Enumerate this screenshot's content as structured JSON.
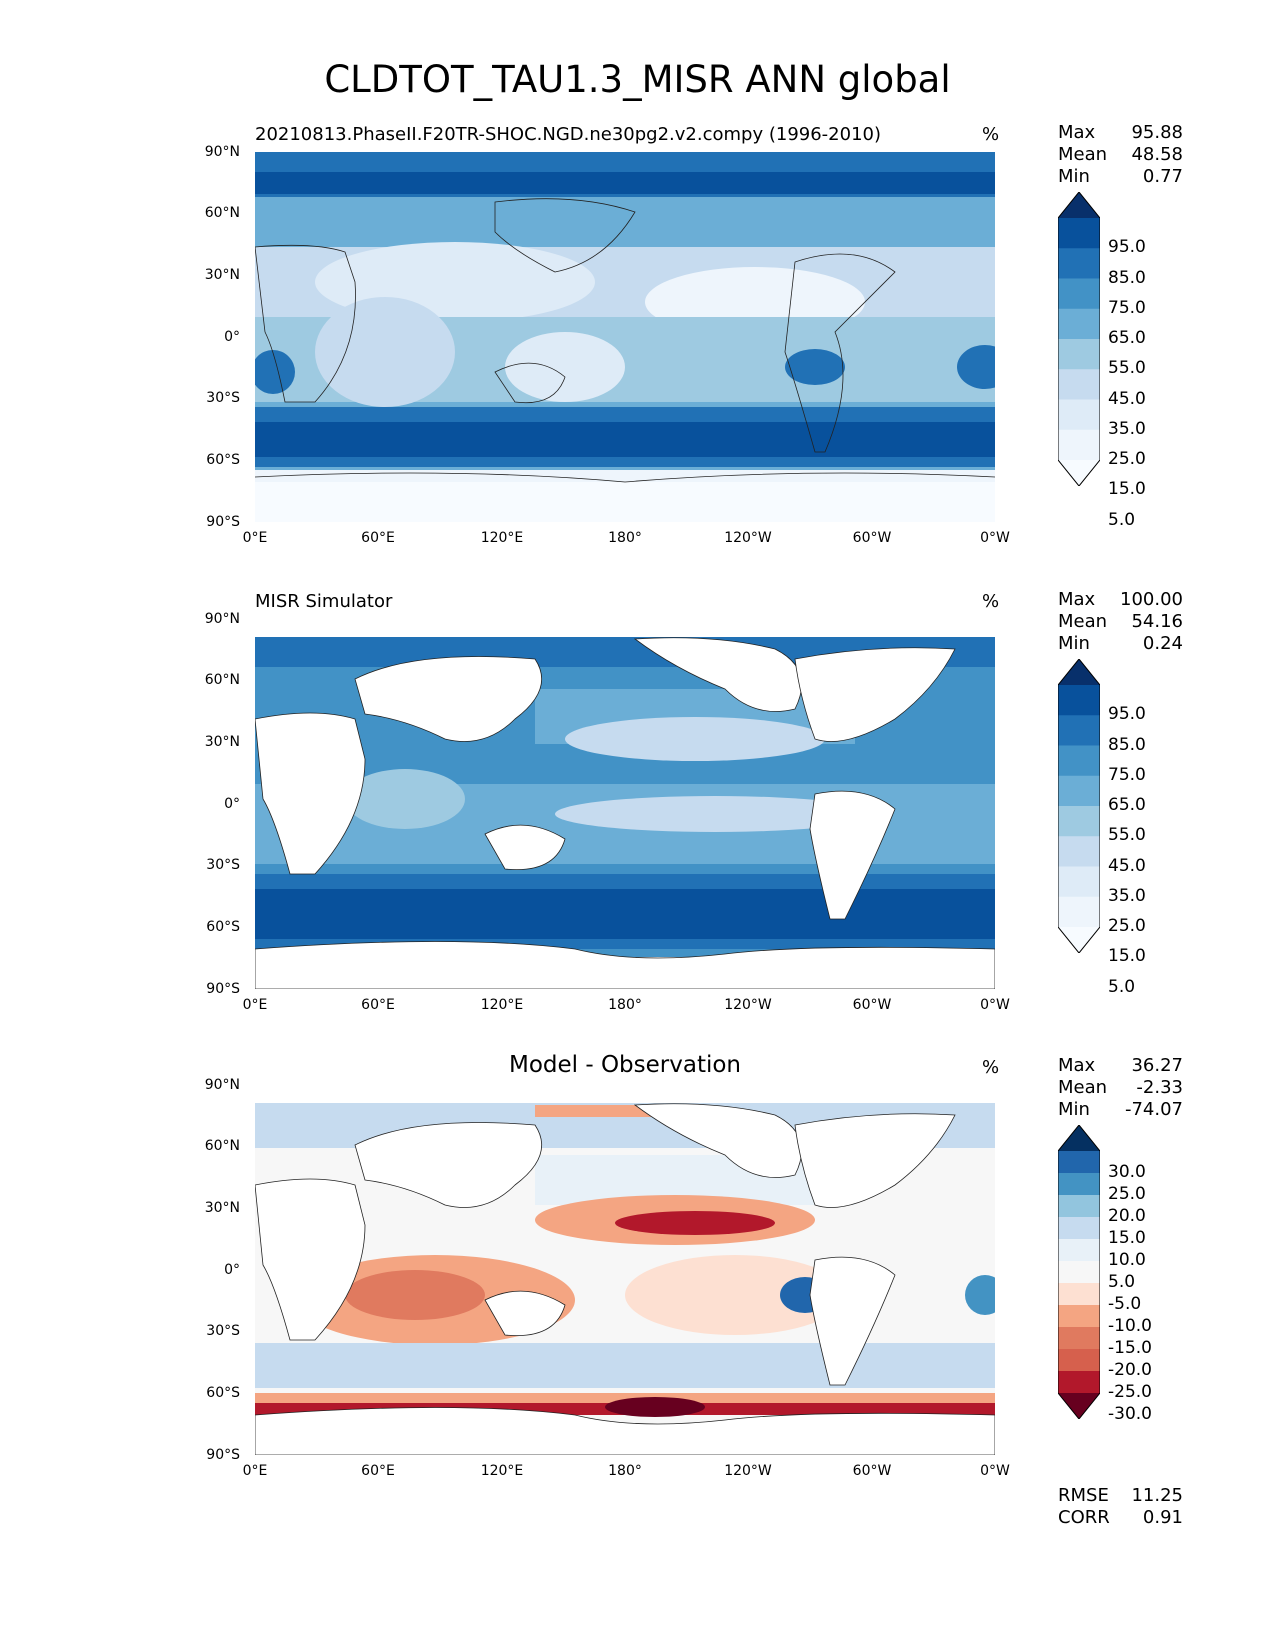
{
  "title": "CLDTOT_TAU1.3_MISR ANN global",
  "xticks": [
    "0°E",
    "60°E",
    "120°E",
    "180°",
    "120°W",
    "60°W",
    "0°W"
  ],
  "yticks": [
    "90°N",
    "60°N",
    "30°N",
    "0°",
    "30°S",
    "60°S",
    "90°S"
  ],
  "panels": [
    {
      "subtitle": "20210813.PhaseII.F20TR-SHOC.NGD.ne30pg2.v2.compy (1996-2010)",
      "units": "%",
      "stats": {
        "max_label": "Max",
        "max": "95.88",
        "mean_label": "Mean",
        "mean": "48.58",
        "min_label": "Min",
        "min": "0.77"
      },
      "colorbar": {
        "labels": [
          "95.0",
          "85.0",
          "75.0",
          "65.0",
          "55.0",
          "45.0",
          "35.0",
          "25.0",
          "15.0",
          "5.0"
        ],
        "colors": [
          "#08306b",
          "#08519c",
          "#2171b5",
          "#4292c6",
          "#6baed6",
          "#9ecae1",
          "#c6dbef",
          "#deebf7",
          "#eef5fc",
          "#f7fbff"
        ]
      }
    },
    {
      "subtitle": "MISR Simulator",
      "units": "%",
      "stats": {
        "max_label": "Max",
        "max": "100.00",
        "mean_label": "Mean",
        "mean": "54.16",
        "min_label": "Min",
        "min": "0.24"
      },
      "colorbar": {
        "labels": [
          "95.0",
          "85.0",
          "75.0",
          "65.0",
          "55.0",
          "45.0",
          "35.0",
          "25.0",
          "15.0",
          "5.0"
        ],
        "colors": [
          "#08306b",
          "#08519c",
          "#2171b5",
          "#4292c6",
          "#6baed6",
          "#9ecae1",
          "#c6dbef",
          "#deebf7",
          "#eef5fc",
          "#f7fbff"
        ]
      }
    },
    {
      "subtitle": "Model - Observation",
      "units": "%",
      "stats": {
        "max_label": "Max",
        "max": "36.27",
        "mean_label": "Mean",
        "mean": "-2.33",
        "min_label": "Min",
        "min": "-74.07"
      },
      "colorbar": {
        "labels": [
          "30.0",
          "25.0",
          "20.0",
          "15.0",
          "10.0",
          "5.0",
          "-5.0",
          "-10.0",
          "-15.0",
          "-20.0",
          "-25.0",
          "-30.0"
        ],
        "colors": [
          "#053061",
          "#2166ac",
          "#4393c3",
          "#92c5de",
          "#c6dbef",
          "#e8f1f8",
          "#f7f7f7",
          "#fde0d2",
          "#f4a582",
          "#e07a5f",
          "#d6604d",
          "#b2182b",
          "#67001f"
        ]
      },
      "extra": {
        "rmse_label": "RMSE",
        "rmse": "11.25",
        "corr_label": "CORR",
        "corr": "0.91"
      }
    }
  ]
}
